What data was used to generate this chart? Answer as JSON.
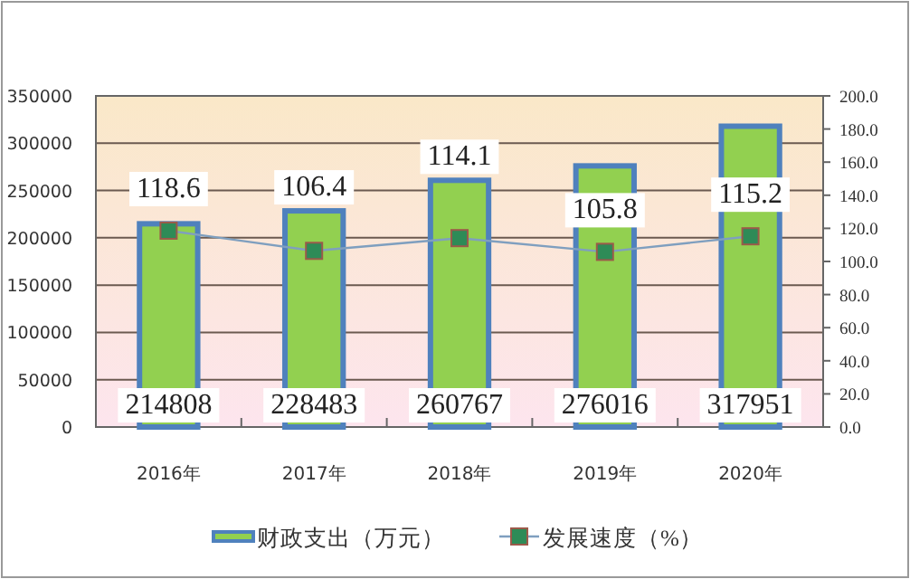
{
  "chart_data": {
    "type": "bar",
    "categories": [
      "2016年",
      "2017年",
      "2018年",
      "2019年",
      "2020年"
    ],
    "series": [
      {
        "name": "财政支出（万元）",
        "color": "#92d050",
        "values": [
          214808,
          228483,
          260767,
          276016,
          317951
        ]
      },
      {
        "name": "发展速度（%）",
        "type": "line",
        "axis": "y2",
        "color": "#2e8b57",
        "values": [
          118.6,
          106.4,
          114.1,
          105.8,
          115.2
        ]
      }
    ],
    "ylim": [
      0,
      350000
    ],
    "yticks": [
      0,
      50000,
      100000,
      150000,
      200000,
      250000,
      300000,
      350000
    ],
    "y2lim": [
      0,
      200
    ],
    "y2ticks": [
      {
        "value": 0,
        "label": "0.0"
      },
      {
        "value": 20,
        "label": "20.0"
      },
      {
        "value": 40,
        "label": "40.0"
      },
      {
        "value": 60,
        "label": "60.0"
      },
      {
        "value": 80,
        "label": "80.0"
      },
      {
        "value": 100,
        "label": "100.0"
      },
      {
        "value": 120,
        "label": "120.0"
      },
      {
        "value": 140,
        "label": "140.0"
      },
      {
        "value": 160,
        "label": "160.0"
      },
      {
        "value": 180,
        "label": "180.0"
      },
      {
        "value": 200,
        "label": "200.0"
      }
    ],
    "grid": "y",
    "legend": "bottom",
    "data_labels": true,
    "marker": "square"
  }
}
